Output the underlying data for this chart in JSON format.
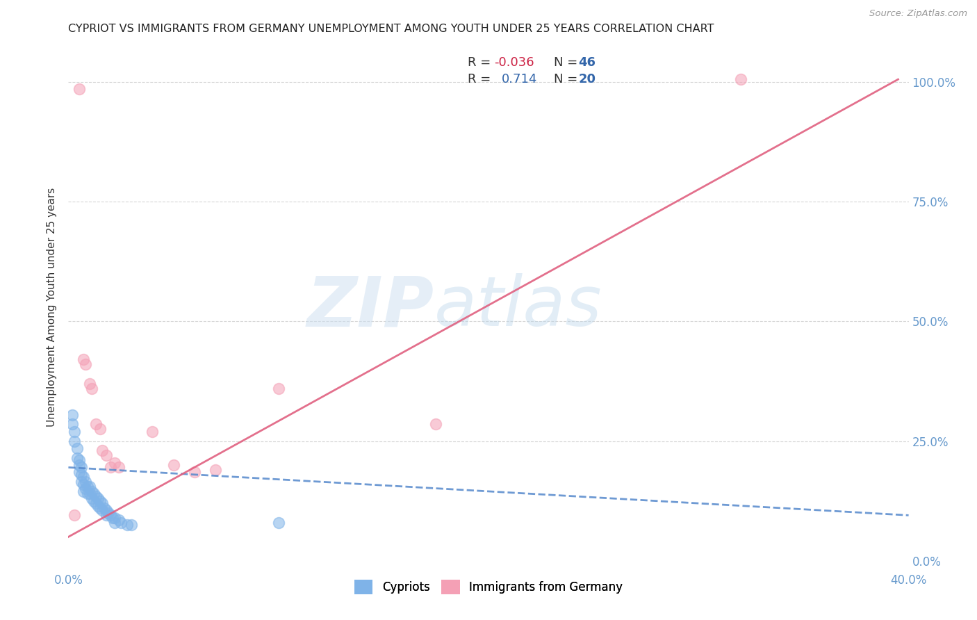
{
  "title": "CYPRIOT VS IMMIGRANTS FROM GERMANY UNEMPLOYMENT AMONG YOUTH UNDER 25 YEARS CORRELATION CHART",
  "source": "Source: ZipAtlas.com",
  "ylabel": "Unemployment Among Youth under 25 years",
  "xlim": [
    0.0,
    0.4
  ],
  "ylim": [
    -0.02,
    1.08
  ],
  "x_ticks": [
    0.0,
    0.05,
    0.1,
    0.15,
    0.2,
    0.25,
    0.3,
    0.35,
    0.4
  ],
  "y_ticks": [
    0.0,
    0.25,
    0.5,
    0.75,
    1.0
  ],
  "y_tick_labels": [
    "0.0%",
    "25.0%",
    "50.0%",
    "75.0%",
    "100.0%"
  ],
  "x_tick_labels": [
    "0.0%",
    "",
    "",
    "",
    "",
    "",
    "",
    "",
    "40.0%"
  ],
  "cypriot_color": "#7fb3e8",
  "germany_color": "#f4a0b5",
  "cypriot_R": -0.036,
  "cypriot_N": 46,
  "germany_R": 0.714,
  "germany_N": 20,
  "watermark_zip": "ZIP",
  "watermark_atlas": "atlas",
  "cypriot_x": [
    0.002,
    0.002,
    0.003,
    0.003,
    0.004,
    0.004,
    0.005,
    0.005,
    0.005,
    0.006,
    0.006,
    0.006,
    0.007,
    0.007,
    0.007,
    0.008,
    0.008,
    0.009,
    0.009,
    0.01,
    0.01,
    0.011,
    0.011,
    0.012,
    0.012,
    0.013,
    0.013,
    0.014,
    0.014,
    0.015,
    0.015,
    0.016,
    0.016,
    0.017,
    0.018,
    0.018,
    0.019,
    0.02,
    0.021,
    0.022,
    0.022,
    0.024,
    0.025,
    0.028,
    0.03,
    0.1
  ],
  "cypriot_y": [
    0.305,
    0.285,
    0.27,
    0.25,
    0.235,
    0.215,
    0.21,
    0.2,
    0.185,
    0.195,
    0.18,
    0.165,
    0.175,
    0.16,
    0.145,
    0.165,
    0.15,
    0.155,
    0.14,
    0.155,
    0.14,
    0.145,
    0.13,
    0.14,
    0.125,
    0.135,
    0.12,
    0.13,
    0.115,
    0.125,
    0.11,
    0.12,
    0.105,
    0.11,
    0.105,
    0.095,
    0.1,
    0.095,
    0.09,
    0.09,
    0.08,
    0.085,
    0.08,
    0.075,
    0.075,
    0.08
  ],
  "germany_x": [
    0.003,
    0.005,
    0.007,
    0.008,
    0.01,
    0.011,
    0.013,
    0.015,
    0.016,
    0.018,
    0.02,
    0.022,
    0.024,
    0.04,
    0.05,
    0.06,
    0.07,
    0.1,
    0.175,
    0.32
  ],
  "germany_y": [
    0.095,
    0.985,
    0.42,
    0.41,
    0.37,
    0.36,
    0.285,
    0.275,
    0.23,
    0.22,
    0.195,
    0.205,
    0.195,
    0.27,
    0.2,
    0.185,
    0.19,
    0.36,
    0.285,
    1.005
  ],
  "cy_trend_x": [
    0.0,
    0.4
  ],
  "cy_trend_y": [
    0.195,
    0.095
  ],
  "de_trend_x": [
    0.0,
    0.395
  ],
  "de_trend_y": [
    0.05,
    1.005
  ]
}
